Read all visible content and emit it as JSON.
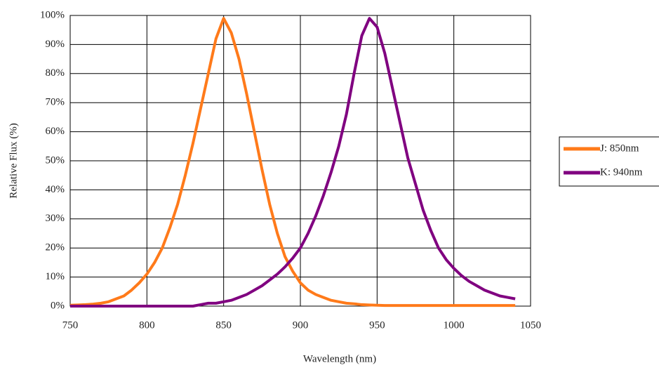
{
  "chart_data": {
    "type": "line",
    "x_label": "Wavelength (nm)",
    "y_label": "Relative Flux (%)",
    "x": [
      750,
      755,
      760,
      765,
      770,
      775,
      780,
      785,
      790,
      795,
      800,
      805,
      810,
      815,
      820,
      825,
      830,
      835,
      840,
      845,
      850,
      855,
      860,
      865,
      870,
      875,
      880,
      885,
      890,
      895,
      900,
      905,
      910,
      915,
      920,
      925,
      930,
      935,
      940,
      945,
      950,
      955,
      960,
      965,
      970,
      975,
      980,
      985,
      990,
      995,
      1000,
      1005,
      1010,
      1015,
      1020,
      1025,
      1030,
      1035,
      1040
    ],
    "series": [
      {
        "name": "J: 850nm",
        "color": "#ff7a1a",
        "values": [
          0.3,
          0.4,
          0.5,
          0.7,
          1,
          1.5,
          2.5,
          3.5,
          5.5,
          8,
          11,
          15,
          20,
          27,
          35,
          45,
          56,
          68,
          80,
          92,
          99,
          94,
          85,
          73,
          60,
          47,
          35,
          25,
          17,
          12,
          8,
          5.5,
          4,
          3,
          2,
          1.5,
          1,
          0.8,
          0.5,
          0.4,
          0.3,
          0.2,
          0.2,
          0.2,
          0.2,
          0.2,
          0.2,
          0.2,
          0.2,
          0.2,
          0.2,
          0.2,
          0.2,
          0.2,
          0.2,
          0.2,
          0.2,
          0.2,
          0.2
        ]
      },
      {
        "name": "K: 940nm",
        "color": "#800080",
        "values": [
          0,
          0,
          0,
          0,
          0,
          0,
          0,
          0,
          0,
          0,
          0,
          0,
          0,
          0,
          0,
          0,
          0,
          0.5,
          1,
          1,
          1.5,
          2,
          3,
          4,
          5.5,
          7,
          9,
          11,
          13.5,
          16.5,
          20,
          25,
          31,
          38,
          46,
          55,
          66,
          80,
          93,
          99,
          96,
          87,
          75,
          63,
          51,
          42,
          33,
          26,
          20,
          16,
          13,
          10.5,
          8.5,
          7,
          5.5,
          4.5,
          3.5,
          3,
          2.5
        ]
      }
    ],
    "xlim": [
      750,
      1050
    ],
    "xticks": [
      750,
      800,
      850,
      900,
      950,
      1000,
      1050
    ],
    "ylim": [
      0,
      100
    ],
    "yticks": [
      {
        "value": 0,
        "label": "0%"
      },
      {
        "value": 10,
        "label": "10%"
      },
      {
        "value": 20,
        "label": "20%"
      },
      {
        "value": 30,
        "label": "30%"
      },
      {
        "value": 40,
        "label": "40%"
      },
      {
        "value": 50,
        "label": "50%"
      },
      {
        "value": 60,
        "label": "60%"
      },
      {
        "value": 70,
        "label": "70%"
      },
      {
        "value": 80,
        "label": "80%"
      },
      {
        "value": 90,
        "label": "90%"
      },
      {
        "value": 100,
        "label": "100%"
      }
    ],
    "grid": true,
    "legend": "right"
  }
}
